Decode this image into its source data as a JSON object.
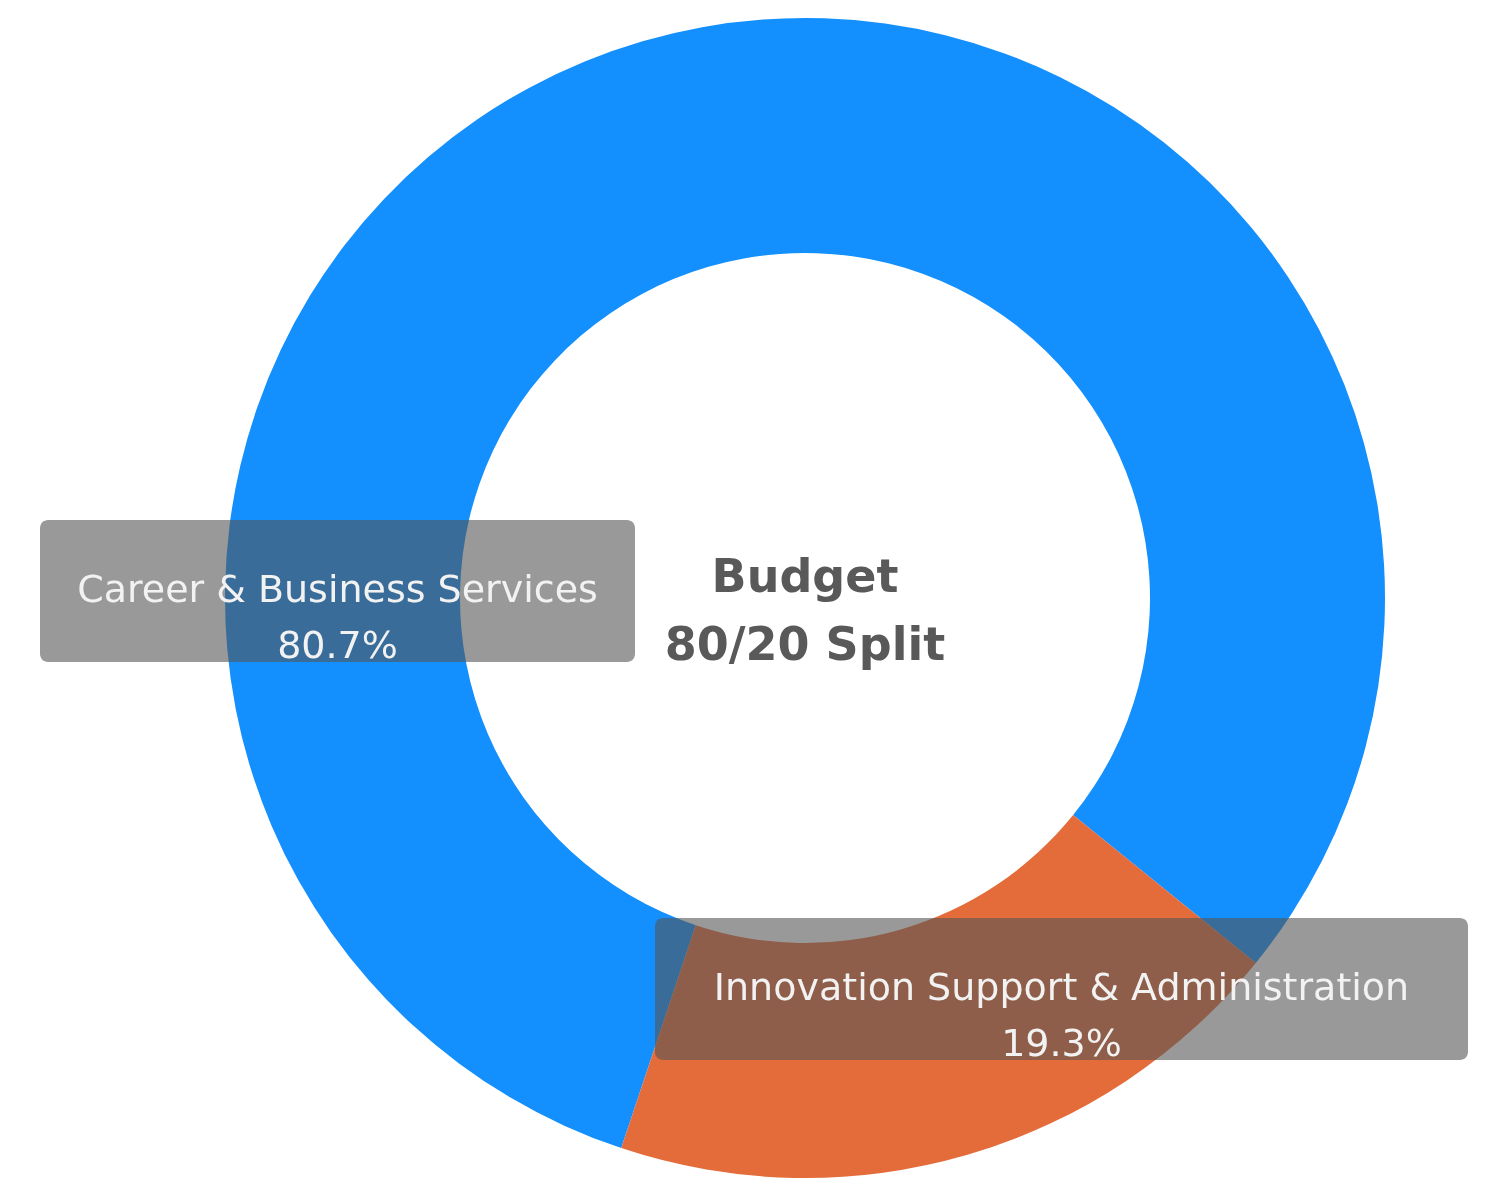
{
  "chart_data": {
    "type": "donut",
    "title": "Budget\n80/20 Split",
    "categories": [
      "Career & Business Services",
      "Innovation Support & Administration"
    ],
    "values": [
      80.7,
      19.3
    ],
    "value_labels": [
      "80.7%",
      "19.3%"
    ],
    "colors": [
      "#138ffe",
      "#e46c3a"
    ]
  }
}
